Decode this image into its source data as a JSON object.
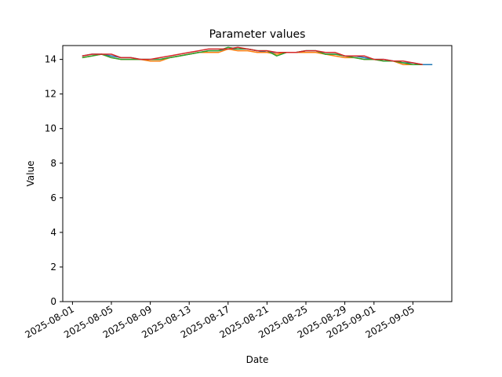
{
  "chart_data": {
    "type": "line",
    "title": "Parameter values",
    "xlabel": "Date",
    "ylabel": "Value",
    "xlim": [
      "2025-07-31",
      "2025-09-09"
    ],
    "ylim": [
      0,
      14.8
    ],
    "x_ticks": [
      "2025-08-01",
      "2025-08-05",
      "2025-08-09",
      "2025-08-13",
      "2025-08-17",
      "2025-08-21",
      "2025-08-25",
      "2025-08-29",
      "2025-09-01",
      "2025-09-05"
    ],
    "y_ticks": [
      0,
      2,
      4,
      6,
      8,
      10,
      12,
      14
    ],
    "grid": false,
    "x": [
      "2025-08-02",
      "2025-08-03",
      "2025-08-04",
      "2025-08-05",
      "2025-08-06",
      "2025-08-07",
      "2025-08-08",
      "2025-08-09",
      "2025-08-10",
      "2025-08-11",
      "2025-08-12",
      "2025-08-13",
      "2025-08-14",
      "2025-08-15",
      "2025-08-16",
      "2025-08-17",
      "2025-08-18",
      "2025-08-19",
      "2025-08-20",
      "2025-08-21",
      "2025-08-22",
      "2025-08-23",
      "2025-08-24",
      "2025-08-25",
      "2025-08-26",
      "2025-08-27",
      "2025-08-28",
      "2025-08-29",
      "2025-08-30",
      "2025-08-31",
      "2025-09-01",
      "2025-09-02",
      "2025-09-03",
      "2025-09-04",
      "2025-09-05",
      "2025-09-06",
      "2025-09-07"
    ],
    "series": [
      {
        "color": "#1f77b4",
        "values": [
          14.2,
          14.3,
          14.3,
          14.2,
          14.1,
          14.1,
          14.0,
          14.0,
          14.0,
          14.1,
          14.2,
          14.3,
          14.4,
          14.5,
          14.5,
          14.6,
          14.6,
          14.6,
          14.5,
          14.4,
          14.4,
          14.4,
          14.4,
          14.5,
          14.5,
          14.3,
          14.3,
          14.2,
          14.2,
          14.1,
          14.0,
          14.0,
          13.9,
          13.8,
          13.8,
          13.7,
          13.7
        ]
      },
      {
        "color": "#ff7f0e",
        "values": [
          14.1,
          14.2,
          14.3,
          14.1,
          14.0,
          14.0,
          14.0,
          13.9,
          13.9,
          14.1,
          14.2,
          14.3,
          14.4,
          14.4,
          14.4,
          14.6,
          14.5,
          14.5,
          14.4,
          14.4,
          14.3,
          14.4,
          14.4,
          14.4,
          14.4,
          14.3,
          14.2,
          14.1,
          14.1,
          14.0,
          14.0,
          13.9,
          13.9,
          13.7,
          13.7,
          13.7,
          null
        ]
      },
      {
        "color": "#2ca02c",
        "values": [
          14.1,
          14.2,
          14.3,
          14.1,
          14.0,
          14.0,
          14.0,
          14.0,
          14.0,
          14.1,
          14.2,
          14.3,
          14.4,
          14.5,
          14.5,
          14.7,
          14.6,
          14.6,
          14.5,
          14.5,
          14.2,
          14.4,
          14.4,
          14.5,
          14.5,
          14.3,
          14.3,
          14.2,
          14.1,
          14.0,
          14.0,
          13.9,
          13.9,
          13.8,
          13.7,
          13.7,
          null
        ]
      },
      {
        "color": "#d62728",
        "values": [
          14.2,
          14.3,
          14.3,
          14.3,
          14.1,
          14.1,
          14.0,
          14.0,
          14.1,
          14.2,
          14.3,
          14.4,
          14.5,
          14.6,
          14.6,
          14.6,
          14.7,
          14.6,
          14.5,
          14.5,
          14.4,
          14.4,
          14.4,
          14.5,
          14.5,
          14.4,
          14.4,
          14.2,
          14.2,
          14.2,
          14.0,
          14.0,
          13.9,
          13.9,
          13.8,
          13.7,
          null
        ]
      }
    ]
  }
}
